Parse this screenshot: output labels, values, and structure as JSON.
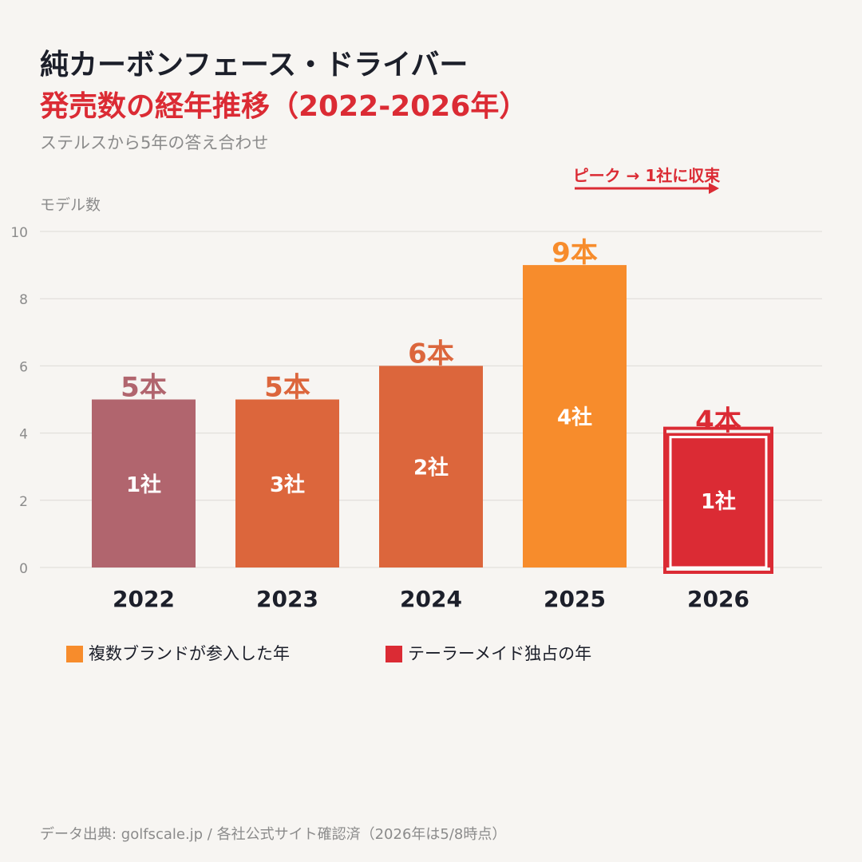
{
  "title_line1": "純カーボンフェース・ドライバー",
  "title_line2": "発売数の経年推移（2022-2026年）",
  "subtitle": "ステルスから5年の答え合わせ",
  "footer": "データ出典: golfscale.jp / 各社公式サイト確認済（2026年は5/8時点）",
  "annotation": "ピーク → 1社に収束",
  "legend": [
    {
      "label": "複数ブランドが参入した年",
      "color": "#f78c2c"
    },
    {
      "label": "テーラーメイド独占の年",
      "color": "#db2b34"
    }
  ],
  "chart_data": {
    "type": "bar",
    "ylabel": "モデル数",
    "ylim": [
      0,
      10
    ],
    "yticks": [
      "0",
      "2",
      "4",
      "6",
      "8",
      "10"
    ],
    "categories": [
      "2022",
      "2023",
      "2024",
      "2025",
      "2026"
    ],
    "values": [
      5,
      5,
      6,
      9,
      4
    ],
    "value_labels": [
      "5本",
      "5本",
      "6本",
      "9本",
      "4本"
    ],
    "inner_labels": [
      "1社",
      "3社",
      "2社",
      "4社",
      "1社"
    ],
    "colors": [
      "#b1656e",
      "#dc663c",
      "#dc663c",
      "#f78c2c",
      "#db2b34"
    ],
    "highlight_index": 4
  }
}
